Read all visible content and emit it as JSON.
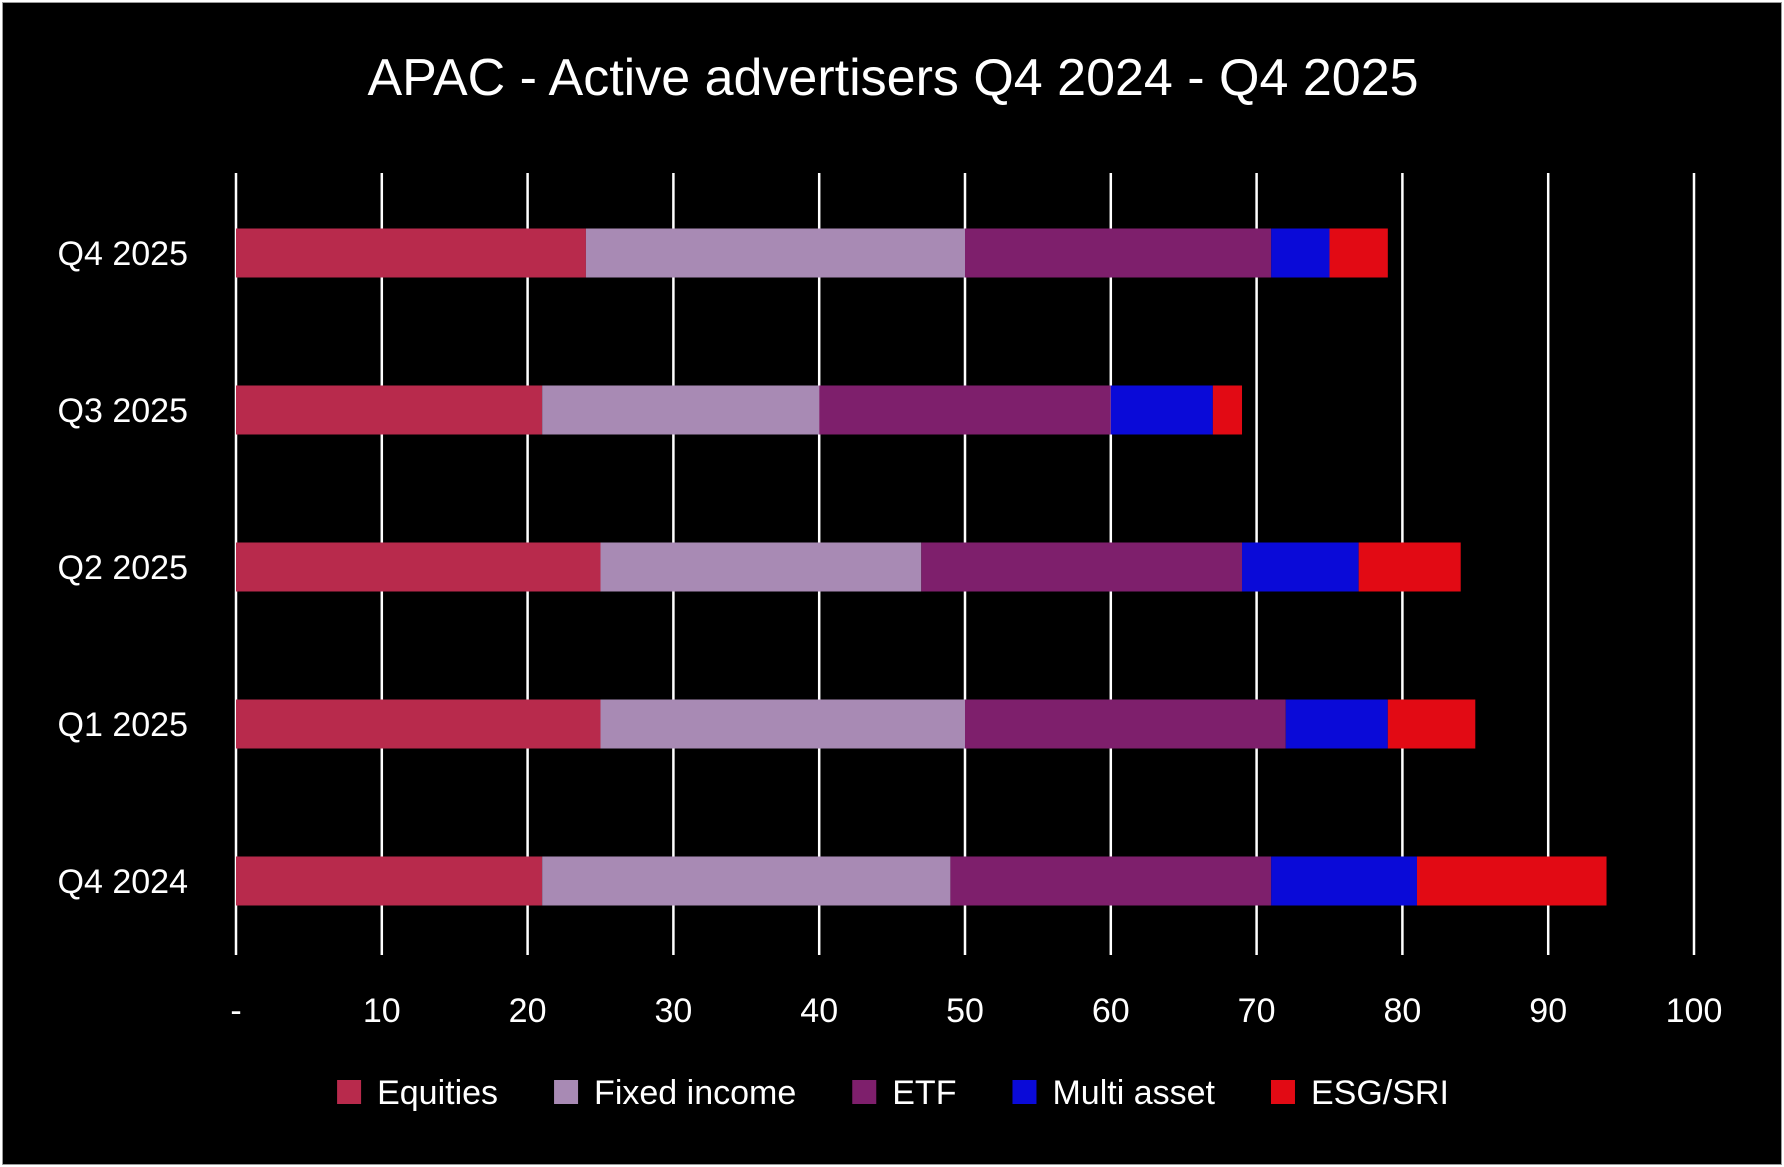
{
  "chart_data": {
    "type": "bar",
    "orientation": "horizontal",
    "stacked": true,
    "title": "APAC - Active advertisers Q4 2024 - Q4 2025",
    "xlabel": "",
    "ylabel": "",
    "xlim": [
      0,
      100
    ],
    "x_ticks": [
      0,
      10,
      20,
      30,
      40,
      50,
      60,
      70,
      80,
      90,
      100
    ],
    "x_tick_labels": [
      "-",
      "10",
      "20",
      "30",
      "40",
      "50",
      "60",
      "70",
      "80",
      "90",
      "100"
    ],
    "grid": "vertical",
    "legend_position": "bottom",
    "categories": [
      "Q4 2025",
      "Q3 2025",
      "Q2 2025",
      "Q1 2025",
      "Q4 2024"
    ],
    "series": [
      {
        "name": "Equities",
        "color": "#b82a4c",
        "values": [
          24,
          21,
          25,
          25,
          21
        ]
      },
      {
        "name": "Fixed income",
        "color": "#a88ab4",
        "values": [
          26,
          19,
          22,
          25,
          28
        ]
      },
      {
        "name": "ETF",
        "color": "#7e1f6c",
        "values": [
          21,
          20,
          22,
          22,
          22
        ]
      },
      {
        "name": "Multi asset",
        "color": "#0a0ad8",
        "values": [
          4,
          7,
          8,
          7,
          10
        ]
      },
      {
        "name": "ESG/SRI",
        "color": "#e20a14",
        "values": [
          4,
          2,
          7,
          6,
          13
        ]
      }
    ]
  },
  "colors": {
    "background": "#000000",
    "text": "#ffffff",
    "gridline": "#ffffff"
  }
}
